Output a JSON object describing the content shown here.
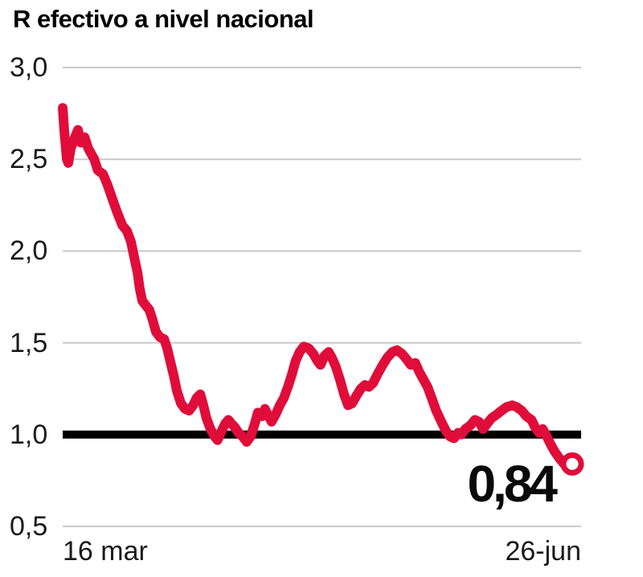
{
  "title": "R efectivo a nivel nacional",
  "annotation": {
    "end_value_label": "0,84"
  },
  "colors": {
    "line": "#e00d3a",
    "reference_line": "#000000",
    "grid": "#c9c9c9",
    "text": "#1a1a1a",
    "title_text": "#000000",
    "marker_fill": "#ffffff",
    "background": "#ffffff"
  },
  "chart_data": {
    "type": "line",
    "title": "R efectivo a nivel nacional",
    "xlabel": "",
    "ylabel": "",
    "grid": true,
    "x_axis": {
      "tick_labels": [
        "16 mar",
        "26-jun"
      ],
      "start_label": "16 mar",
      "end_label": "26-jun"
    },
    "y_axis": {
      "range": [
        0.5,
        3.0
      ],
      "ticks": [
        3.0,
        2.5,
        2.0,
        1.5,
        1.0,
        0.5
      ],
      "tick_labels": [
        "3,0",
        "2,5",
        "2,0",
        "1,5",
        "1,0",
        "0,5"
      ]
    },
    "reference_line": {
      "value": 1.0,
      "style": "thick-black"
    },
    "end_point": {
      "x": 1.0,
      "value": 0.84,
      "label": "0,84",
      "marker": "open-circle"
    },
    "series": [
      {
        "name": "R efectivo",
        "points": [
          [
            0.0,
            2.78
          ],
          [
            0.003,
            2.66
          ],
          [
            0.008,
            2.5
          ],
          [
            0.011,
            2.48
          ],
          [
            0.016,
            2.56
          ],
          [
            0.024,
            2.62
          ],
          [
            0.03,
            2.66
          ],
          [
            0.036,
            2.59
          ],
          [
            0.043,
            2.62
          ],
          [
            0.05,
            2.56
          ],
          [
            0.062,
            2.5
          ],
          [
            0.069,
            2.44
          ],
          [
            0.079,
            2.42
          ],
          [
            0.088,
            2.36
          ],
          [
            0.098,
            2.28
          ],
          [
            0.107,
            2.21
          ],
          [
            0.117,
            2.14
          ],
          [
            0.126,
            2.11
          ],
          [
            0.134,
            2.05
          ],
          [
            0.14,
            1.97
          ],
          [
            0.147,
            1.88
          ],
          [
            0.151,
            1.8
          ],
          [
            0.156,
            1.73
          ],
          [
            0.164,
            1.7
          ],
          [
            0.17,
            1.68
          ],
          [
            0.177,
            1.62
          ],
          [
            0.183,
            1.56
          ],
          [
            0.191,
            1.53
          ],
          [
            0.199,
            1.52
          ],
          [
            0.205,
            1.47
          ],
          [
            0.211,
            1.4
          ],
          [
            0.218,
            1.32
          ],
          [
            0.224,
            1.24
          ],
          [
            0.232,
            1.17
          ],
          [
            0.24,
            1.14
          ],
          [
            0.248,
            1.13
          ],
          [
            0.256,
            1.16
          ],
          [
            0.263,
            1.2
          ],
          [
            0.27,
            1.22
          ],
          [
            0.276,
            1.16
          ],
          [
            0.282,
            1.09
          ],
          [
            0.29,
            1.03
          ],
          [
            0.298,
            0.99
          ],
          [
            0.304,
            0.97
          ],
          [
            0.312,
            1.02
          ],
          [
            0.319,
            1.06
          ],
          [
            0.325,
            1.08
          ],
          [
            0.331,
            1.06
          ],
          [
            0.338,
            1.04
          ],
          [
            0.345,
            1.01
          ],
          [
            0.353,
            0.99
          ],
          [
            0.361,
            0.96
          ],
          [
            0.369,
            0.99
          ],
          [
            0.377,
            1.06
          ],
          [
            0.383,
            1.12
          ],
          [
            0.391,
            1.1
          ],
          [
            0.397,
            1.14
          ],
          [
            0.404,
            1.1
          ],
          [
            0.41,
            1.07
          ],
          [
            0.418,
            1.11
          ],
          [
            0.426,
            1.16
          ],
          [
            0.434,
            1.2
          ],
          [
            0.442,
            1.26
          ],
          [
            0.45,
            1.33
          ],
          [
            0.457,
            1.4
          ],
          [
            0.465,
            1.45
          ],
          [
            0.473,
            1.48
          ],
          [
            0.483,
            1.47
          ],
          [
            0.492,
            1.44
          ],
          [
            0.5,
            1.4
          ],
          [
            0.506,
            1.38
          ],
          [
            0.514,
            1.43
          ],
          [
            0.522,
            1.45
          ],
          [
            0.528,
            1.42
          ],
          [
            0.536,
            1.37
          ],
          [
            0.544,
            1.3
          ],
          [
            0.552,
            1.22
          ],
          [
            0.56,
            1.16
          ],
          [
            0.568,
            1.17
          ],
          [
            0.576,
            1.21
          ],
          [
            0.585,
            1.25
          ],
          [
            0.593,
            1.27
          ],
          [
            0.601,
            1.26
          ],
          [
            0.609,
            1.28
          ],
          [
            0.618,
            1.33
          ],
          [
            0.628,
            1.38
          ],
          [
            0.637,
            1.42
          ],
          [
            0.647,
            1.45
          ],
          [
            0.656,
            1.46
          ],
          [
            0.666,
            1.44
          ],
          [
            0.675,
            1.41
          ],
          [
            0.683,
            1.38
          ],
          [
            0.692,
            1.39
          ],
          [
            0.7,
            1.34
          ],
          [
            0.708,
            1.3
          ],
          [
            0.716,
            1.26
          ],
          [
            0.724,
            1.2
          ],
          [
            0.733,
            1.13
          ],
          [
            0.743,
            1.07
          ],
          [
            0.752,
            1.02
          ],
          [
            0.76,
            0.99
          ],
          [
            0.768,
            0.98
          ],
          [
            0.776,
            1.01
          ],
          [
            0.782,
            1.0
          ],
          [
            0.79,
            1.03
          ],
          [
            0.8,
            1.05
          ],
          [
            0.809,
            1.08
          ],
          [
            0.817,
            1.07
          ],
          [
            0.825,
            1.03
          ],
          [
            0.833,
            1.06
          ],
          [
            0.842,
            1.09
          ],
          [
            0.852,
            1.11
          ],
          [
            0.861,
            1.13
          ],
          [
            0.871,
            1.15
          ],
          [
            0.882,
            1.16
          ],
          [
            0.891,
            1.15
          ],
          [
            0.901,
            1.13
          ],
          [
            0.91,
            1.1
          ],
          [
            0.92,
            1.08
          ],
          [
            0.927,
            1.04
          ],
          [
            0.935,
            1.01
          ],
          [
            0.942,
            1.03
          ],
          [
            0.95,
            0.99
          ],
          [
            0.957,
            0.95
          ],
          [
            0.965,
            0.91
          ],
          [
            0.975,
            0.87
          ],
          [
            0.984,
            0.84
          ],
          [
            0.992,
            0.83
          ],
          [
            1.0,
            0.84
          ]
        ]
      }
    ]
  }
}
